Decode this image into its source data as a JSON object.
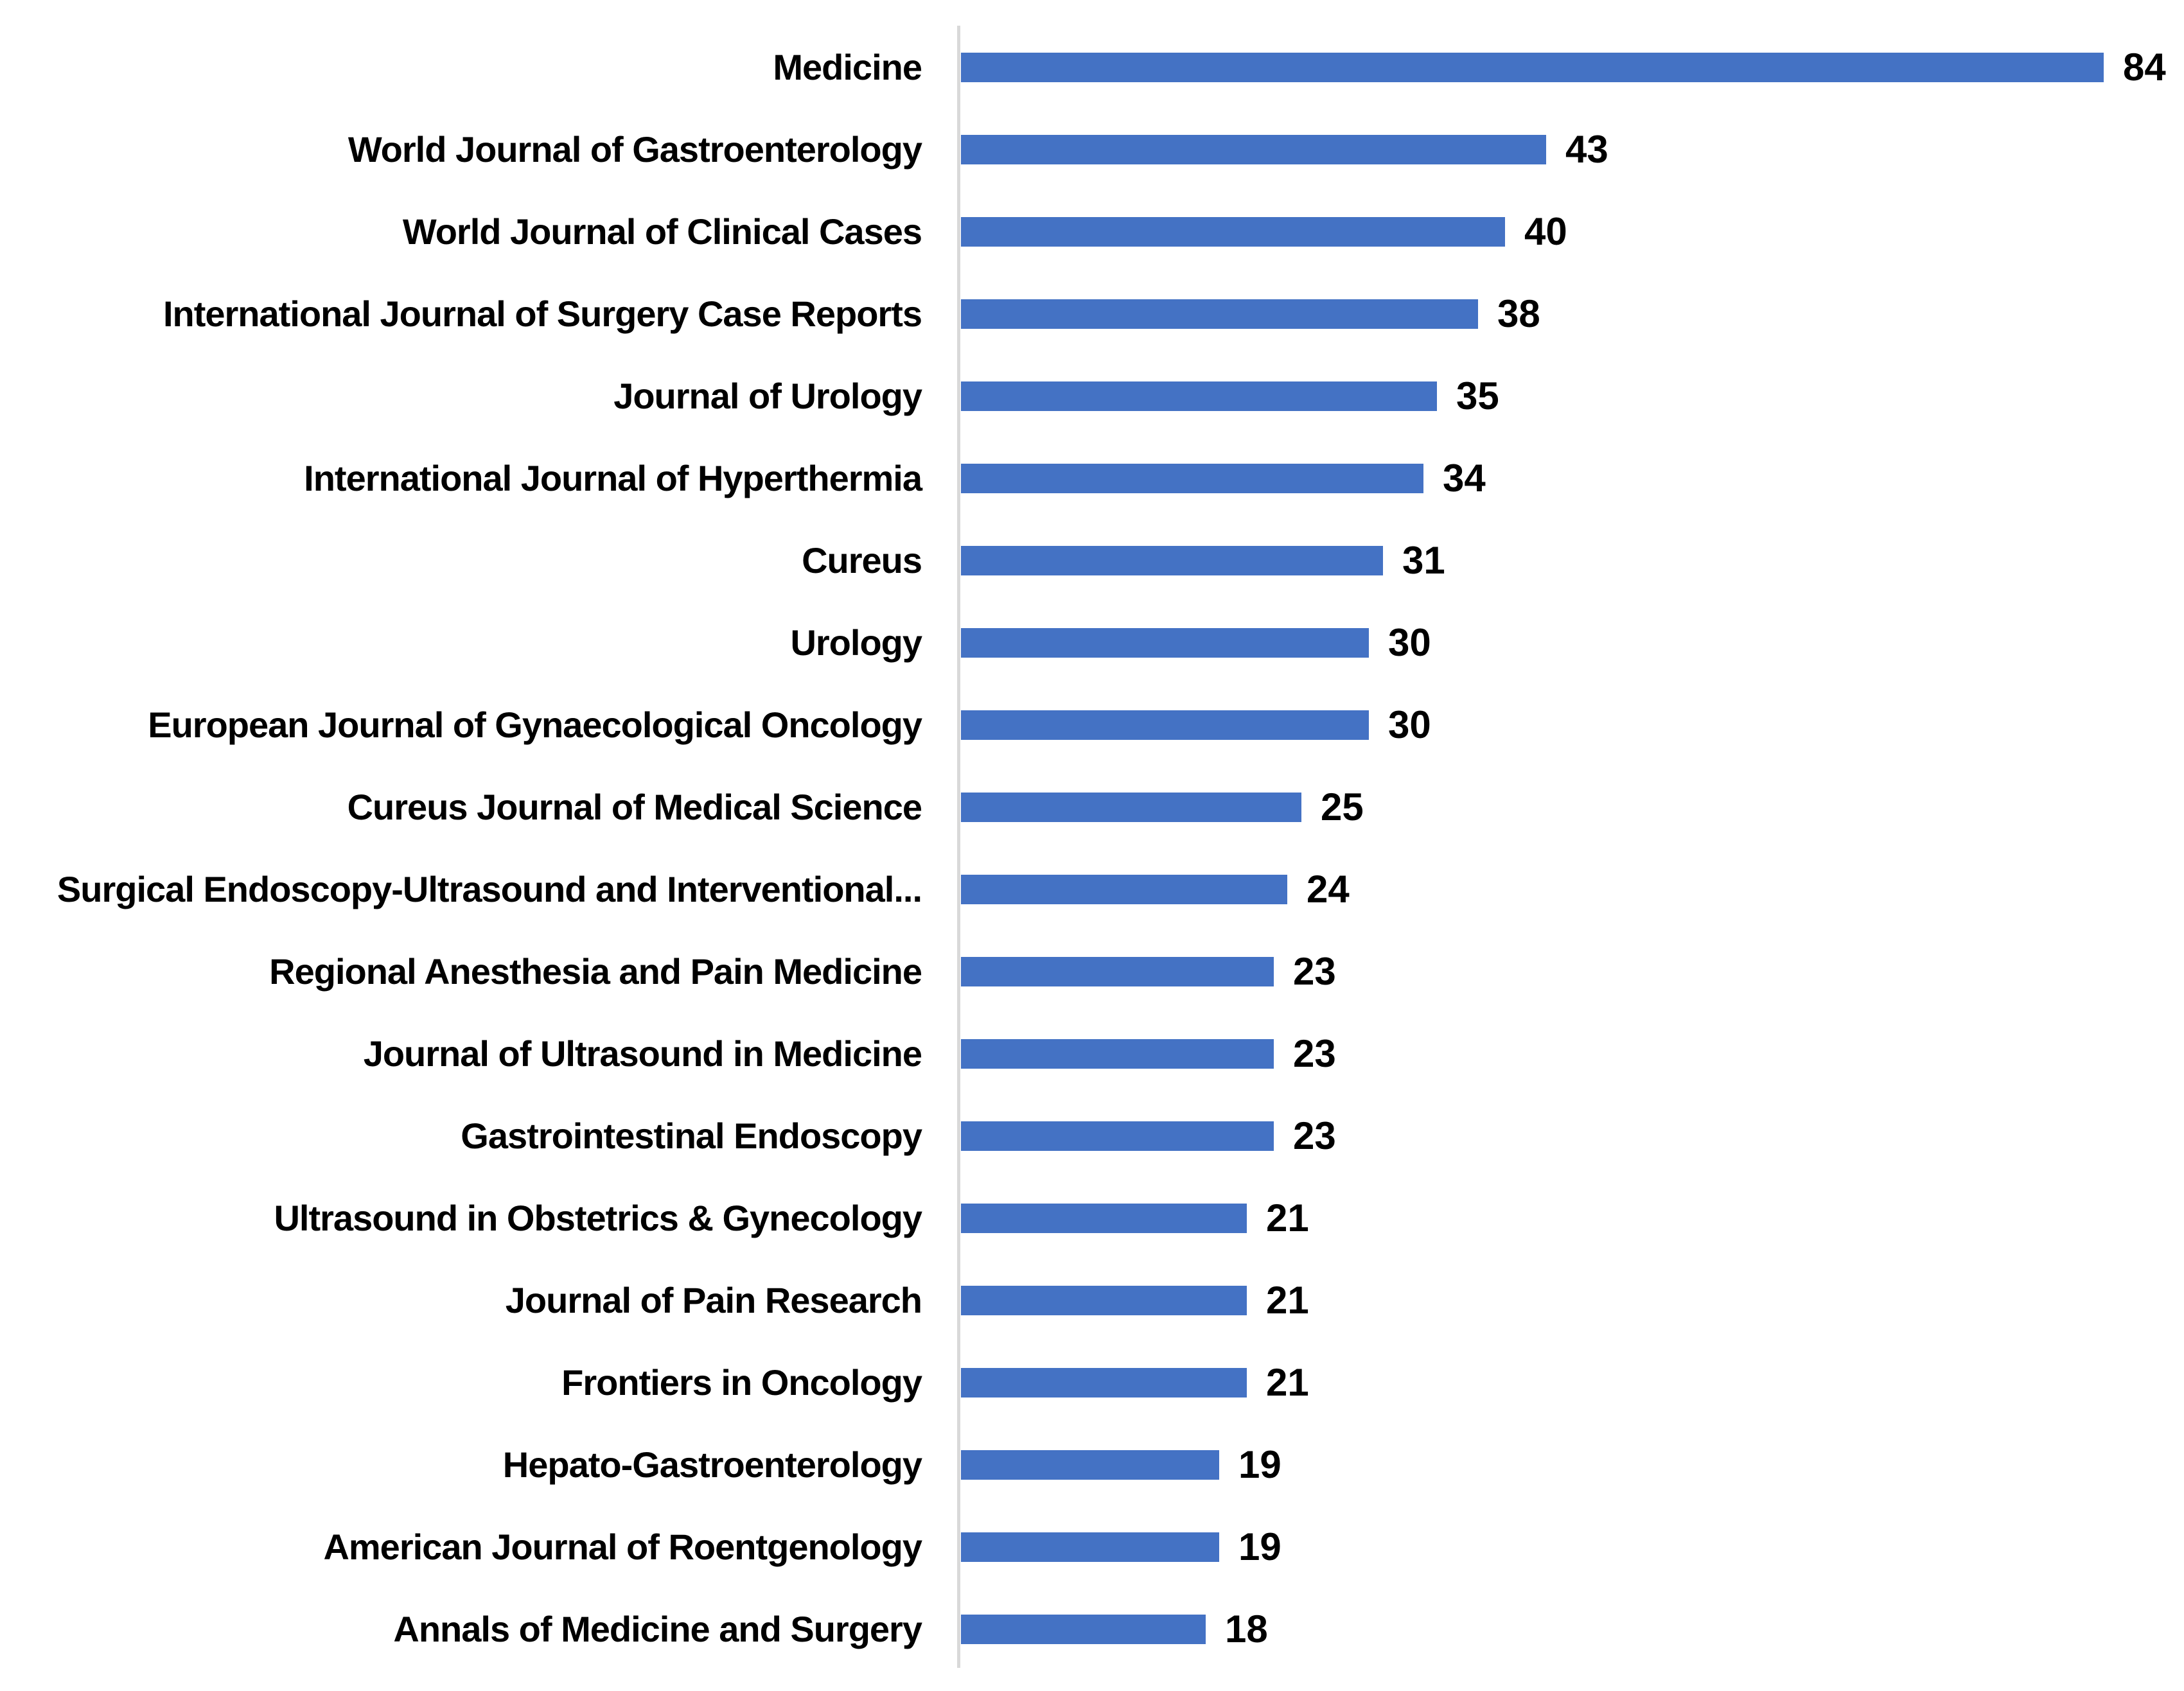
{
  "chart_data": {
    "type": "bar",
    "orientation": "horizontal",
    "title": "",
    "xlabel": "",
    "ylabel": "",
    "categories": [
      "Medicine",
      "World Journal of Gastroenterology",
      "World Journal of Clinical Cases",
      "International Journal of Surgery Case Reports",
      "Journal of Urology",
      "International Journal of Hyperthermia",
      "Cureus",
      "Urology",
      "European Journal of Gynaecological Oncology",
      "Cureus Journal of Medical Science",
      "Surgical Endoscopy-Ultrasound and Interventional...",
      "Regional Anesthesia and Pain Medicine",
      "Journal of Ultrasound in Medicine",
      "Gastrointestinal Endoscopy",
      "Ultrasound in Obstetrics & Gynecology",
      "Journal of Pain Research",
      "Frontiers in Oncology",
      "Hepato-Gastroenterology",
      "American Journal of Roentgenology",
      "Annals of Medicine and Surgery"
    ],
    "values": [
      84,
      43,
      40,
      38,
      35,
      34,
      31,
      30,
      30,
      25,
      24,
      23,
      23,
      23,
      21,
      21,
      21,
      19,
      19,
      18
    ],
    "xlim": [
      0,
      90
    ],
    "grid": false,
    "legend": "none",
    "data_labels": "outside-end",
    "bar_color": "#4472C4",
    "axis_line_color": "#D9D9D9",
    "text_color": "#000000"
  }
}
